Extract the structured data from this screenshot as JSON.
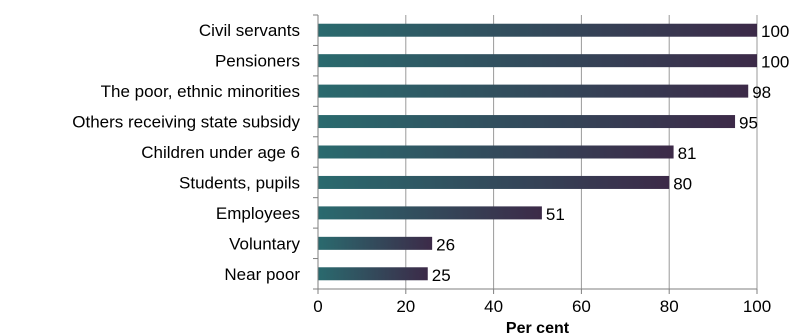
{
  "chart_data": {
    "type": "bar",
    "orientation": "horizontal",
    "categories": [
      "Civil servants",
      "Pensioners",
      "The poor, ethnic minorities",
      "Others receiving state subsidy",
      "Children under age 6",
      "Students, pupils",
      "Employees",
      "Voluntary",
      "Near poor"
    ],
    "values": [
      100,
      100,
      98,
      95,
      81,
      80,
      51,
      26,
      25
    ],
    "data_labels": [
      "100",
      "100",
      "98",
      "95",
      "81",
      "80",
      "51",
      "26",
      "25"
    ],
    "xlabel": "Per cent",
    "ylabel": "",
    "xlim": [
      0,
      100
    ],
    "xticks": [
      0,
      20,
      40,
      60,
      80,
      100
    ],
    "xtick_labels": [
      "0",
      "20",
      "40",
      "60",
      "80",
      "100"
    ],
    "grid": "vertical",
    "legend": "none",
    "colors": {
      "bar_start": "#2a6a6e",
      "bar_end": "#3c2a48",
      "grid": "#9a9a9a",
      "axis": "#7f7f7f",
      "text": "#000000"
    }
  }
}
